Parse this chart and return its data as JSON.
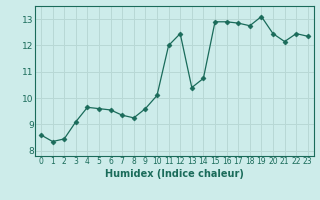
{
  "x": [
    0,
    1,
    2,
    3,
    4,
    5,
    6,
    7,
    8,
    9,
    10,
    11,
    12,
    13,
    14,
    15,
    16,
    17,
    18,
    19,
    20,
    21,
    22,
    23
  ],
  "y": [
    8.6,
    8.35,
    8.45,
    9.1,
    9.65,
    9.6,
    9.55,
    9.35,
    9.25,
    9.6,
    10.1,
    12.0,
    12.45,
    10.4,
    10.75,
    12.9,
    12.9,
    12.85,
    12.75,
    13.1,
    12.45,
    12.15,
    12.45,
    12.35
  ],
  "xlabel": "Humidex (Indice chaleur)",
  "ylabel": "",
  "ylim": [
    7.8,
    13.5
  ],
  "xlim": [
    -0.5,
    23.5
  ],
  "yticks": [
    8,
    9,
    10,
    11,
    12,
    13
  ],
  "xticks": [
    0,
    1,
    2,
    3,
    4,
    5,
    6,
    7,
    8,
    9,
    10,
    11,
    12,
    13,
    14,
    15,
    16,
    17,
    18,
    19,
    20,
    21,
    22,
    23
  ],
  "line_color": "#1a6b5a",
  "marker": "D",
  "marker_size": 2.5,
  "bg_color": "#cdecea",
  "grid_color": "#b8d8d5",
  "title": "",
  "tick_color": "#1a6b5a",
  "xlabel_fontsize": 7,
  "ytick_fontsize": 6.5,
  "xtick_fontsize": 5.5
}
